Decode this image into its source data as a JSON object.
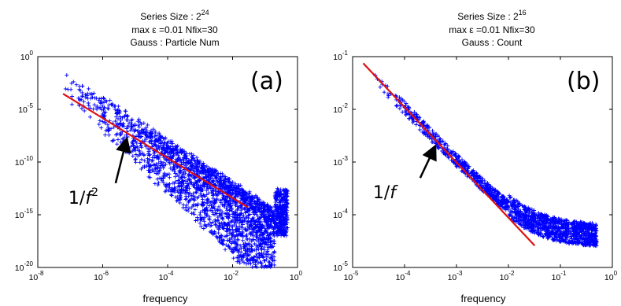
{
  "chart_data": [
    {
      "type": "scatter",
      "panel_label": "(a)",
      "title_prefix": "Series Size : 2",
      "title_exp": "24",
      "subtitle_1": "max ε =0.01   Nfix=30",
      "subtitle_2": "Gauss   :   Particle Num",
      "xlabel": "frequency",
      "x_scale": "log",
      "y_scale": "log",
      "xlim": [
        1e-08,
        1
      ],
      "ylim": [
        1e-20,
        1
      ],
      "x_ticks": [
        {
          "base": "10",
          "exp": "-8",
          "value": 1e-08
        },
        {
          "base": "10",
          "exp": "-6",
          "value": 1e-06
        },
        {
          "base": "10",
          "exp": "-4",
          "value": 0.0001
        },
        {
          "base": "10",
          "exp": "-2",
          "value": 0.01
        },
        {
          "base": "10",
          "exp": "0",
          "value": 1
        }
      ],
      "y_ticks": [
        {
          "base": "10",
          "exp": "-20",
          "value": 1e-20
        },
        {
          "base": "10",
          "exp": "-15",
          "value": 1e-15
        },
        {
          "base": "10",
          "exp": "-10",
          "value": 1e-10
        },
        {
          "base": "10",
          "exp": "-5",
          "value": 1e-05
        },
        {
          "base": "10",
          "exp": "0",
          "value": 1
        }
      ],
      "marker_color": "#0000ff",
      "fit_color": "#dd1111",
      "data_x_range": [
        6e-08,
        0.5
      ],
      "data_y_start": 0.02,
      "data_slope": -2,
      "data_spread_dex": [
        -6,
        1.2
      ],
      "fit_line": {
        "x": [
          6e-08,
          0.03
        ],
        "y": [
          0.0003,
          5e-15
        ]
      },
      "annotation_text": "1/",
      "annotation_var": "f",
      "annotation_exp": "2",
      "arrow_from": [
        2.5e-06,
        1e-12
      ],
      "arrow_to": [
        5e-06,
        5e-09
      ]
    },
    {
      "type": "scatter",
      "panel_label": "(b)",
      "title_prefix": "Series Size : 2",
      "title_exp": "16",
      "subtitle_1": "max ε =0.01   Nfix=30",
      "subtitle_2": "Gauss   :   Count",
      "xlabel": "frequency",
      "x_scale": "log",
      "y_scale": "log",
      "xlim": [
        1e-05,
        1
      ],
      "ylim": [
        1e-05,
        0.1
      ],
      "x_ticks": [
        {
          "base": "10",
          "exp": "-5",
          "value": 1e-05
        },
        {
          "base": "10",
          "exp": "-4",
          "value": 0.0001
        },
        {
          "base": "10",
          "exp": "-3",
          "value": 0.001
        },
        {
          "base": "10",
          "exp": "-2",
          "value": 0.01
        },
        {
          "base": "10",
          "exp": "-1",
          "value": 0.1
        },
        {
          "base": "10",
          "exp": "0",
          "value": 1
        }
      ],
      "y_ticks": [
        {
          "base": "10",
          "exp": "-5",
          "value": 1e-05
        },
        {
          "base": "10",
          "exp": "-4",
          "value": 0.0001
        },
        {
          "base": "10",
          "exp": "-3",
          "value": 0.001
        },
        {
          "base": "10",
          "exp": "-2",
          "value": 0.01
        },
        {
          "base": "10",
          "exp": "-1",
          "value": 0.1
        }
      ],
      "marker_color": "#0000ff",
      "fit_color": "#dd1111",
      "data_x_range": [
        1.5e-05,
        0.5
      ],
      "data_y_start": 0.07,
      "data_slope": -1,
      "data_floor": 4e-05,
      "data_spread_dex": [
        -0.15,
        0.15
      ],
      "fit_line": {
        "x": [
          1.6e-05,
          0.032
        ],
        "y": [
          0.075,
          2.6e-05
        ]
      },
      "annotation_text": "1/",
      "annotation_var": "f",
      "annotation_exp": "",
      "arrow_from": [
        0.0002,
        0.0005
      ],
      "arrow_to": [
        0.00035,
        0.0016
      ]
    }
  ]
}
